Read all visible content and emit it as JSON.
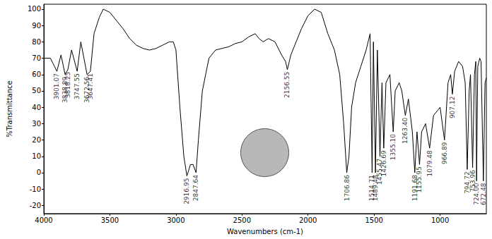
{
  "chart_data": {
    "type": "line",
    "x_label": "Wavenumbers (cm-1)",
    "y_label": "%Transmittance",
    "color": "#000000",
    "x": [
      4000,
      3950,
      3901.07,
      3870,
      3838.89,
      3818.25,
      3790,
      3747.55,
      3720,
      3672.56,
      3647.41,
      3620,
      3580,
      3550,
      3500,
      3450,
      3400,
      3350,
      3300,
      3250,
      3200,
      3150,
      3100,
      3050,
      3020,
      3000,
      2970,
      2940,
      2916.95,
      2890,
      2870,
      2847.64,
      2830,
      2800,
      2750,
      2700,
      2650,
      2600,
      2550,
      2500,
      2450,
      2400,
      2370,
      2340,
      2300,
      2250,
      2200,
      2170,
      2156.55,
      2130,
      2100,
      2050,
      2000,
      1950,
      1900,
      1850,
      1800,
      1760,
      1730,
      1706.86,
      1690,
      1670,
      1640,
      1600,
      1560,
      1530,
      1514.71,
      1505,
      1489.48,
      1475,
      1455.47,
      1440,
      1426.69,
      1410,
      1380,
      1355.1,
      1340,
      1310,
      1290,
      1263.4,
      1240,
      1210,
      1191.68,
      1175,
      1155.95,
      1140,
      1110,
      1079.48,
      1050,
      1000,
      966.89,
      940,
      920,
      907.12,
      890,
      860,
      830,
      810,
      794.72,
      780,
      770,
      753.96,
      740,
      730,
      724,
      715,
      700,
      690,
      672.48,
      660,
      650
    ],
    "values": [
      70,
      70,
      62,
      72,
      60,
      63,
      75,
      62,
      80,
      60,
      62,
      85,
      95,
      100,
      98,
      93,
      88,
      82,
      78,
      76,
      75,
      76,
      78,
      80,
      80,
      75,
      40,
      10,
      -2,
      5,
      5,
      0,
      20,
      50,
      70,
      75,
      76,
      77,
      79,
      80,
      83,
      85,
      82,
      80,
      82,
      80,
      72,
      68,
      63,
      72,
      78,
      88,
      96,
      100,
      98,
      85,
      75,
      60,
      30,
      0,
      10,
      40,
      55,
      65,
      75,
      85,
      0,
      80,
      0,
      75,
      10,
      55,
      15,
      55,
      60,
      25,
      50,
      55,
      50,
      35,
      45,
      25,
      0,
      25,
      5,
      25,
      30,
      15,
      35,
      40,
      20,
      55,
      60,
      48,
      62,
      68,
      65,
      55,
      2,
      50,
      60,
      3,
      60,
      68,
      -5,
      65,
      70,
      68,
      -5,
      55,
      58
    ],
    "xlim": [
      4000,
      650
    ],
    "xticks": [
      4000,
      3500,
      3000,
      2500,
      2000,
      1500,
      1000
    ],
    "ylim": [
      -25,
      103
    ],
    "yticks": [
      -20,
      -10,
      0,
      10,
      20,
      30,
      40,
      50,
      60,
      70,
      80,
      90,
      100
    ],
    "grid": false,
    "annotations": [
      {
        "x": 3901.07,
        "y": 62,
        "text": "3901.07"
      },
      {
        "x": 3838.89,
        "y": 60,
        "text": "3838.89"
      },
      {
        "x": 3818.25,
        "y": 63,
        "text": "3818.25"
      },
      {
        "x": 3747.55,
        "y": 62,
        "text": "3747.55"
      },
      {
        "x": 3672.56,
        "y": 60,
        "text": "3672.56"
      },
      {
        "x": 3647.41,
        "y": 62,
        "text": "3647.41"
      },
      {
        "x": 2916.95,
        "y": -2,
        "text": "2916.95"
      },
      {
        "x": 2847.64,
        "y": 0,
        "text": "2847.64"
      },
      {
        "x": 2156.55,
        "y": 63,
        "text": "2156.55"
      },
      {
        "x": 1706.86,
        "y": 0,
        "text": "1706.86"
      },
      {
        "x": 1514.71,
        "y": 0,
        "text": "1514.71"
      },
      {
        "x": 1489.48,
        "y": 0,
        "text": "1489.48"
      },
      {
        "x": 1455.47,
        "y": 10,
        "text": "1455.47"
      },
      {
        "x": 1426.69,
        "y": 15,
        "text": "1426.69"
      },
      {
        "x": 1355.1,
        "y": 25,
        "text": "1355.10"
      },
      {
        "x": 1263.4,
        "y": 35,
        "text": "1263.40"
      },
      {
        "x": 1191.68,
        "y": 0,
        "text": "1191.68"
      },
      {
        "x": 1155.95,
        "y": 5,
        "text": "1155.95"
      },
      {
        "x": 1079.48,
        "y": 15,
        "text": "1079.48"
      },
      {
        "x": 966.89,
        "y": 20,
        "text": "966.89"
      },
      {
        "x": 907.12,
        "y": 48,
        "text": "907.12"
      },
      {
        "x": 794.72,
        "y": 2,
        "text": "794.72"
      },
      {
        "x": 753.96,
        "y": 3,
        "text": "753.96"
      },
      {
        "x": 724,
        "y": -5,
        "text": "724.00"
      },
      {
        "x": 672.48,
        "y": -5,
        "text": "672.48"
      }
    ]
  }
}
